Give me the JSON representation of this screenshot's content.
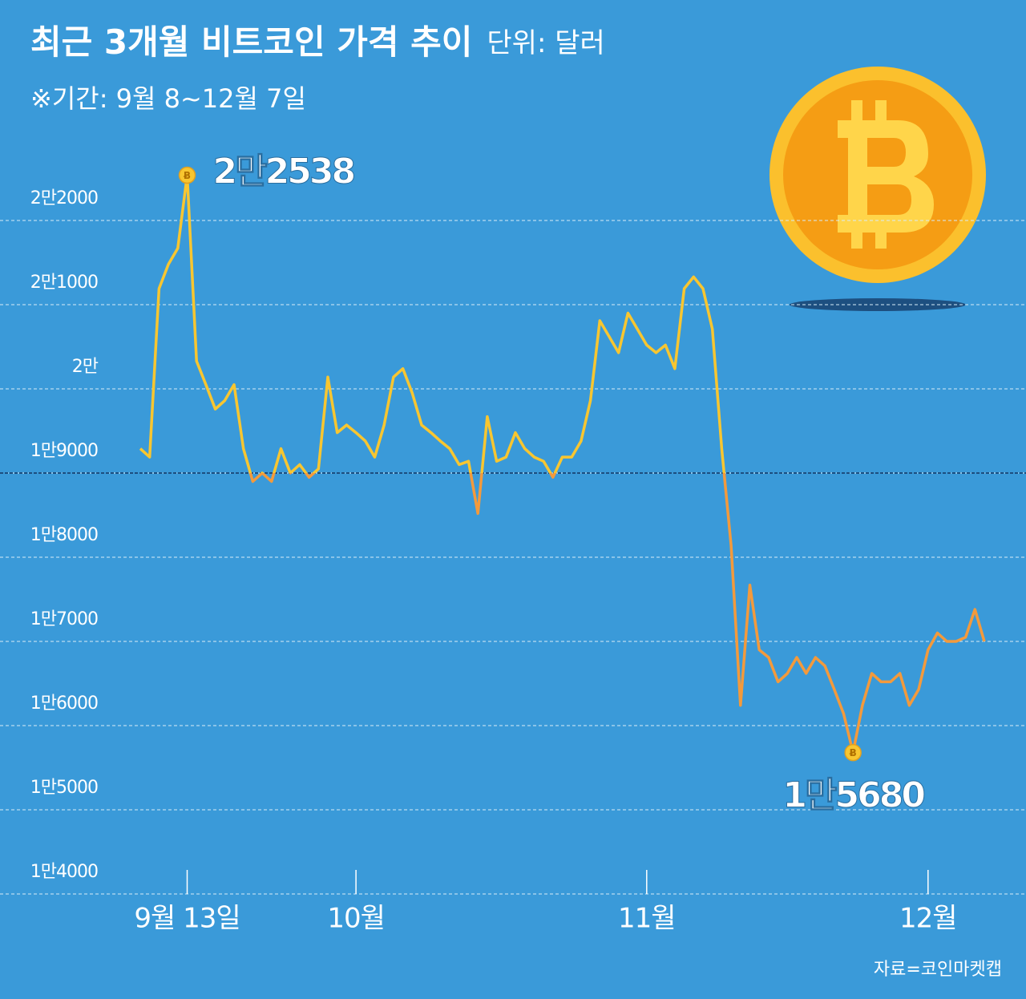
{
  "chart_data": {
    "type": "line",
    "title": "최근 3개월 비트코인 가격 추이",
    "unit": "단위: 달러",
    "subtitle": "※기간: 9월 8~12월 7일",
    "source": "자료=코인마켓캡",
    "categories": [
      null,
      null,
      null,
      null,
      null,
      "9월 13일",
      null,
      null,
      null,
      null,
      null,
      null,
      null,
      null,
      null,
      null,
      null,
      null,
      null,
      null,
      null,
      null,
      null,
      "10월",
      null,
      null,
      null,
      null,
      null,
      null,
      null,
      null,
      null,
      null,
      null,
      null,
      null,
      null,
      null,
      null,
      null,
      null,
      null,
      null,
      null,
      null,
      null,
      null,
      null,
      null,
      null,
      null,
      null,
      null,
      "11월",
      null,
      null,
      null,
      null,
      null,
      null,
      null,
      null,
      null,
      null,
      null,
      null,
      null,
      null,
      null,
      null,
      null,
      null,
      null,
      null,
      null,
      null,
      null,
      null,
      null,
      null,
      null,
      null,
      null,
      "12월",
      null,
      null,
      null,
      null,
      null,
      null
    ],
    "series": [
      {
        "values": [
          19290,
          19190,
          21190,
          21480,
          21670,
          22538,
          20330,
          20050,
          19760,
          19860,
          20050,
          19290,
          18900,
          19000,
          18900,
          19290,
          19000,
          19100,
          18950,
          19050,
          20140,
          19480,
          19570,
          19480,
          19380,
          19190,
          19570,
          20140,
          20240,
          19950,
          19570,
          19480,
          19380,
          19290,
          19100,
          19140,
          18520,
          19670,
          19140,
          19190,
          19480,
          19290,
          19190,
          19140,
          18950,
          19190,
          19190,
          19380,
          19860,
          20810,
          20620,
          20430,
          20900,
          20710,
          20520,
          20430,
          20520,
          20240,
          21190,
          21330,
          21190,
          20710,
          19290,
          18140,
          16240,
          17670,
          16900,
          16810,
          16520,
          16620,
          16810,
          16620,
          16810,
          16710,
          16430,
          16140,
          15680,
          16240,
          16620,
          16520,
          16520,
          16620,
          16240,
          16430,
          16900,
          17100,
          17000,
          17000,
          17050,
          17380,
          17000
        ],
        "value_labels": [
          null,
          null,
          null,
          null,
          null,
          "2만2538",
          null,
          null,
          null,
          null,
          null,
          null,
          null,
          null,
          null,
          null,
          null,
          null,
          null,
          null,
          null,
          null,
          null,
          null,
          null,
          null,
          null,
          null,
          null,
          null,
          null,
          null,
          null,
          null,
          null,
          null,
          null,
          null,
          null,
          null,
          null,
          null,
          null,
          null,
          null,
          null,
          null,
          null,
          null,
          null,
          null,
          null,
          null,
          null,
          null,
          null,
          null,
          null,
          null,
          null,
          null,
          null,
          null,
          null,
          null,
          null,
          null,
          null,
          null,
          null,
          null,
          null,
          null,
          null,
          null,
          null,
          "1만5680",
          null,
          null,
          null,
          null,
          null,
          null,
          null,
          null,
          null,
          null,
          null,
          null,
          null,
          null
        ],
        "color_above": "#f8c630",
        "color_below": "#f39a3c"
      }
    ],
    "threshold": 19000,
    "ylim": [
      14000,
      22700
    ],
    "yticks": [
      {
        "value": 14000,
        "label": "1만4000"
      },
      {
        "value": 15000,
        "label": "1만5000"
      },
      {
        "value": 16000,
        "label": "1만6000"
      },
      {
        "value": 17000,
        "label": "1만7000"
      },
      {
        "value": 18000,
        "label": "1만8000"
      },
      {
        "value": 19000,
        "label": "1만9000"
      },
      {
        "value": 20000,
        "label": "2만"
      },
      {
        "value": 21000,
        "label": "2만1000"
      },
      {
        "value": 22000,
        "label": "2만2000"
      }
    ],
    "grid": true
  }
}
